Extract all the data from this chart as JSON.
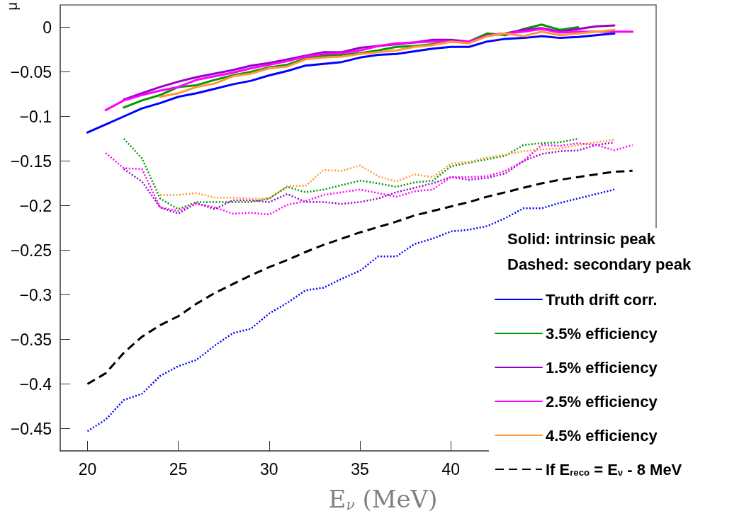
{
  "chart_data": {
    "type": "line",
    "xlabel": "E$_{ν}$ (MeV)",
    "ylabel": "μ",
    "xlim": [
      18.5,
      51.3
    ],
    "ylim": [
      -0.475,
      0.025
    ],
    "xticks": [
      20,
      25,
      30,
      35,
      40
    ],
    "yticks": [
      {
        "value": -0.45,
        "label": "−0.45"
      },
      {
        "value": -0.4,
        "label": "−0.4"
      },
      {
        "value": -0.35,
        "label": "−0.35"
      },
      {
        "value": -0.3,
        "label": "−0.3"
      },
      {
        "value": -0.25,
        "label": "−0.25"
      },
      {
        "value": -0.2,
        "label": "−0.2"
      },
      {
        "value": -0.15,
        "label": "−0.15"
      },
      {
        "value": -0.1,
        "label": "−0.1"
      },
      {
        "value": -0.05,
        "label": "−0.05"
      },
      0
    ],
    "grid": false,
    "legend": "bottom right",
    "marker": "none",
    "annotations": [
      "Solid: intrinsic peak",
      "Dashed: secondary peak"
    ],
    "series": [
      {
        "name": "Truth drift corr.",
        "color": "#0000ff",
        "line_style": "solid",
        "x": [
          20,
          21,
          22,
          23,
          24,
          25,
          26,
          27,
          28,
          29,
          30,
          31,
          32,
          33,
          34,
          35,
          36,
          37,
          38,
          39,
          40,
          41,
          42,
          43,
          44,
          45,
          46,
          47,
          48,
          49
        ],
        "values": [
          -0.118,
          -0.109,
          -0.1,
          -0.091,
          -0.085,
          -0.078,
          -0.074,
          -0.069,
          -0.064,
          -0.06,
          -0.054,
          -0.049,
          -0.043,
          -0.041,
          -0.039,
          -0.034,
          -0.031,
          -0.03,
          -0.027,
          -0.024,
          -0.022,
          -0.022,
          -0.016,
          -0.013,
          -0.012,
          -0.01,
          -0.012,
          -0.011,
          -0.009,
          -0.007
        ]
      },
      {
        "name": "3.5% efficiency",
        "color": "#009900",
        "line_style": "solid",
        "x": [
          22,
          23,
          24,
          25,
          26,
          27,
          28,
          29,
          30,
          31,
          32,
          33,
          34,
          35,
          36,
          37,
          38,
          39,
          40,
          41,
          42,
          43,
          44,
          45,
          46,
          47
        ],
        "values": [
          -0.09,
          -0.082,
          -0.076,
          -0.067,
          -0.065,
          -0.059,
          -0.054,
          -0.05,
          -0.045,
          -0.042,
          -0.035,
          -0.032,
          -0.031,
          -0.029,
          -0.026,
          -0.022,
          -0.021,
          -0.019,
          -0.016,
          -0.016,
          -0.007,
          -0.009,
          -0.002,
          0.003,
          -0.003,
          0
        ]
      },
      {
        "name": "1.5% efficiency",
        "color": "#9900cc",
        "line_style": "solid",
        "x": [
          22,
          23,
          24,
          25,
          26,
          27,
          28,
          29,
          30,
          31,
          32,
          33,
          34,
          35,
          36,
          37,
          38,
          39,
          40,
          41,
          42,
          43,
          44,
          45,
          46,
          47,
          48,
          49
        ],
        "values": [
          -0.081,
          -0.074,
          -0.067,
          -0.061,
          -0.056,
          -0.052,
          -0.048,
          -0.043,
          -0.04,
          -0.036,
          -0.032,
          -0.028,
          -0.028,
          -0.023,
          -0.021,
          -0.019,
          -0.017,
          -0.014,
          -0.014,
          -0.016,
          -0.009,
          -0.007,
          -0.003,
          -0.001,
          -0.005,
          -0.002,
          0.001,
          0.002
        ]
      },
      {
        "name": "2.5% efficiency",
        "color": "#ff00ff",
        "line_style": "solid",
        "x": [
          21,
          22,
          23,
          24,
          25,
          26,
          27,
          28,
          29,
          30,
          31,
          32,
          33,
          34,
          35,
          36,
          37,
          38,
          39,
          40,
          41,
          42,
          43,
          44,
          45,
          46,
          47,
          48,
          49,
          50
        ],
        "values": [
          -0.093,
          -0.082,
          -0.076,
          -0.071,
          -0.067,
          -0.059,
          -0.055,
          -0.051,
          -0.046,
          -0.042,
          -0.038,
          -0.033,
          -0.03,
          -0.029,
          -0.026,
          -0.021,
          -0.018,
          -0.017,
          -0.016,
          -0.016,
          -0.016,
          -0.01,
          -0.007,
          -0.005,
          -0.002,
          -0.006,
          -0.005,
          -0.005,
          -0.005,
          -0.005
        ]
      },
      {
        "name": "4.5% efficiency",
        "color": "#ff9933",
        "line_style": "solid",
        "x": [
          24,
          25,
          26,
          27,
          28,
          29,
          30,
          31,
          32,
          33,
          34,
          35,
          36,
          37,
          38,
          39,
          40,
          41,
          42,
          43,
          44,
          45,
          46,
          47,
          48,
          49
        ],
        "values": [
          -0.078,
          -0.074,
          -0.067,
          -0.063,
          -0.055,
          -0.052,
          -0.046,
          -0.044,
          -0.036,
          -0.034,
          -0.033,
          -0.03,
          -0.028,
          -0.026,
          -0.022,
          -0.02,
          -0.016,
          -0.018,
          -0.01,
          -0.007,
          -0.01,
          -0.005,
          -0.009,
          -0.007,
          -0.005,
          -0.003
        ]
      },
      {
        "name": "If E$_{reco}$ = E$_{ν}$ - 8 MeV",
        "color": "#000000",
        "line_style": "dashed",
        "x": [
          20,
          21,
          22,
          23,
          24,
          25,
          26,
          27,
          28,
          29,
          30,
          31,
          32,
          33,
          34,
          35,
          36,
          37,
          38,
          39,
          40,
          41,
          42,
          43,
          44,
          45,
          46,
          47,
          48,
          49,
          50
        ],
        "values": [
          -0.4,
          -0.388,
          -0.365,
          -0.347,
          -0.334,
          -0.324,
          -0.31,
          -0.298,
          -0.288,
          -0.278,
          -0.269,
          -0.261,
          -0.252,
          -0.244,
          -0.237,
          -0.23,
          -0.224,
          -0.218,
          -0.211,
          -0.206,
          -0.201,
          -0.196,
          -0.19,
          -0.185,
          -0.18,
          -0.175,
          -0.171,
          -0.168,
          -0.165,
          -0.162,
          -0.161
        ]
      },
      {
        "color": "#0000ff",
        "line_style": "dotted",
        "x": [
          20,
          21,
          22,
          23,
          24,
          25,
          26,
          27,
          28,
          29,
          30,
          31,
          32,
          33,
          34,
          35,
          36,
          37,
          38,
          39,
          40,
          41,
          42,
          43,
          44,
          45,
          46,
          47,
          48,
          49
        ],
        "values": [
          -0.453,
          -0.44,
          -0.418,
          -0.411,
          -0.391,
          -0.38,
          -0.373,
          -0.357,
          -0.343,
          -0.338,
          -0.321,
          -0.309,
          -0.295,
          -0.292,
          -0.282,
          -0.273,
          -0.257,
          -0.257,
          -0.243,
          -0.237,
          -0.229,
          -0.227,
          -0.223,
          -0.214,
          -0.203,
          -0.203,
          -0.197,
          -0.192,
          -0.187,
          -0.182
        ]
      },
      {
        "color": "#009900",
        "line_style": "dotted",
        "x": [
          22,
          23,
          24,
          25,
          26,
          27,
          28,
          29,
          30,
          31,
          32,
          33,
          34,
          35,
          36,
          37,
          38,
          39,
          40,
          41,
          42,
          43,
          44,
          45,
          46,
          47
        ],
        "values": [
          -0.125,
          -0.147,
          -0.192,
          -0.204,
          -0.196,
          -0.196,
          -0.196,
          -0.196,
          -0.192,
          -0.179,
          -0.185,
          -0.182,
          -0.177,
          -0.172,
          -0.175,
          -0.179,
          -0.174,
          -0.172,
          -0.156,
          -0.152,
          -0.148,
          -0.144,
          -0.132,
          -0.13,
          -0.129,
          -0.125
        ]
      },
      {
        "color": "#9900cc",
        "line_style": "dotted",
        "x": [
          22,
          23,
          24,
          25,
          26,
          27,
          28,
          29,
          30,
          31,
          32,
          33,
          34,
          35,
          36,
          37,
          38,
          39,
          40,
          41,
          42,
          43,
          44,
          45,
          46,
          47,
          48,
          49
        ],
        "values": [
          -0.159,
          -0.173,
          -0.202,
          -0.209,
          -0.197,
          -0.204,
          -0.194,
          -0.194,
          -0.196,
          -0.187,
          -0.196,
          -0.196,
          -0.198,
          -0.196,
          -0.192,
          -0.185,
          -0.18,
          -0.175,
          -0.168,
          -0.171,
          -0.169,
          -0.164,
          -0.15,
          -0.142,
          -0.139,
          -0.138,
          -0.132,
          -0.129
        ]
      },
      {
        "color": "#ff00ff",
        "line_style": "dotted",
        "x": [
          21,
          22,
          23,
          24,
          25,
          26,
          27,
          28,
          29,
          30,
          31,
          32,
          33,
          34,
          35,
          36,
          37,
          38,
          39,
          40,
          41,
          42,
          43,
          44,
          45,
          46,
          47,
          48,
          49,
          50
        ],
        "values": [
          -0.141,
          -0.158,
          -0.159,
          -0.202,
          -0.206,
          -0.198,
          -0.202,
          -0.209,
          -0.208,
          -0.21,
          -0.199,
          -0.195,
          -0.188,
          -0.185,
          -0.182,
          -0.186,
          -0.19,
          -0.184,
          -0.182,
          -0.168,
          -0.168,
          -0.167,
          -0.161,
          -0.15,
          -0.132,
          -0.133,
          -0.13,
          -0.132,
          -0.138,
          -0.132
        ]
      },
      {
        "color": "#ff9933",
        "line_style": "dotted",
        "x": [
          24,
          25,
          26,
          27,
          28,
          29,
          30,
          31,
          32,
          33,
          34,
          35,
          36,
          37,
          38,
          39,
          40,
          41,
          42,
          43,
          44,
          45,
          46,
          47,
          48,
          49
        ],
        "values": [
          -0.188,
          -0.188,
          -0.186,
          -0.191,
          -0.191,
          -0.192,
          -0.192,
          -0.178,
          -0.178,
          -0.16,
          -0.161,
          -0.155,
          -0.167,
          -0.173,
          -0.165,
          -0.168,
          -0.153,
          -0.151,
          -0.146,
          -0.143,
          -0.139,
          -0.137,
          -0.136,
          -0.132,
          -0.129,
          -0.126
        ]
      }
    ]
  }
}
